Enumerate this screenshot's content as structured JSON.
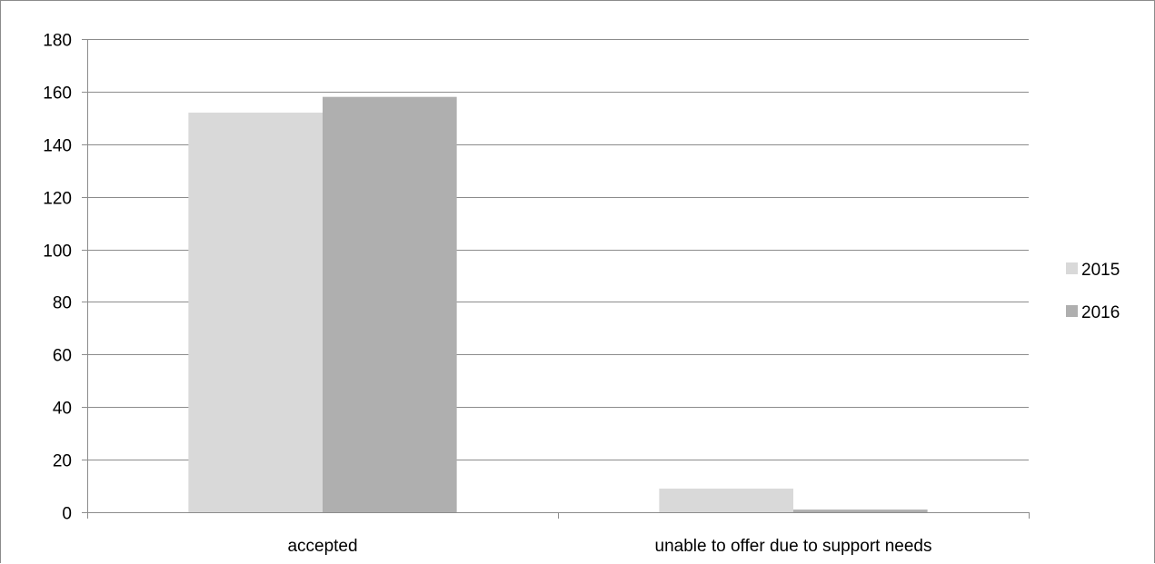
{
  "chart_data": {
    "type": "bar",
    "title": "",
    "xlabel": "",
    "ylabel": "",
    "categories": [
      "accepted",
      "unable to offer due to support needs"
    ],
    "series": [
      {
        "name": "2015",
        "values": [
          152,
          9
        ],
        "color": "#d9d9d9"
      },
      {
        "name": "2016",
        "values": [
          158,
          1
        ],
        "color": "#afafaf"
      }
    ],
    "ylim": [
      0,
      180
    ],
    "yticks": [
      0,
      20,
      40,
      60,
      80,
      100,
      120,
      140,
      160,
      180
    ],
    "ytick_labels": [
      "0",
      "20",
      "40",
      "60",
      "80",
      "100",
      "120",
      "140",
      "160",
      "180"
    ],
    "grid": true,
    "legend_position": "right",
    "colors": {
      "grid": "#8c8c8c",
      "axis": "#8c8c8c",
      "text": "#000000"
    }
  }
}
